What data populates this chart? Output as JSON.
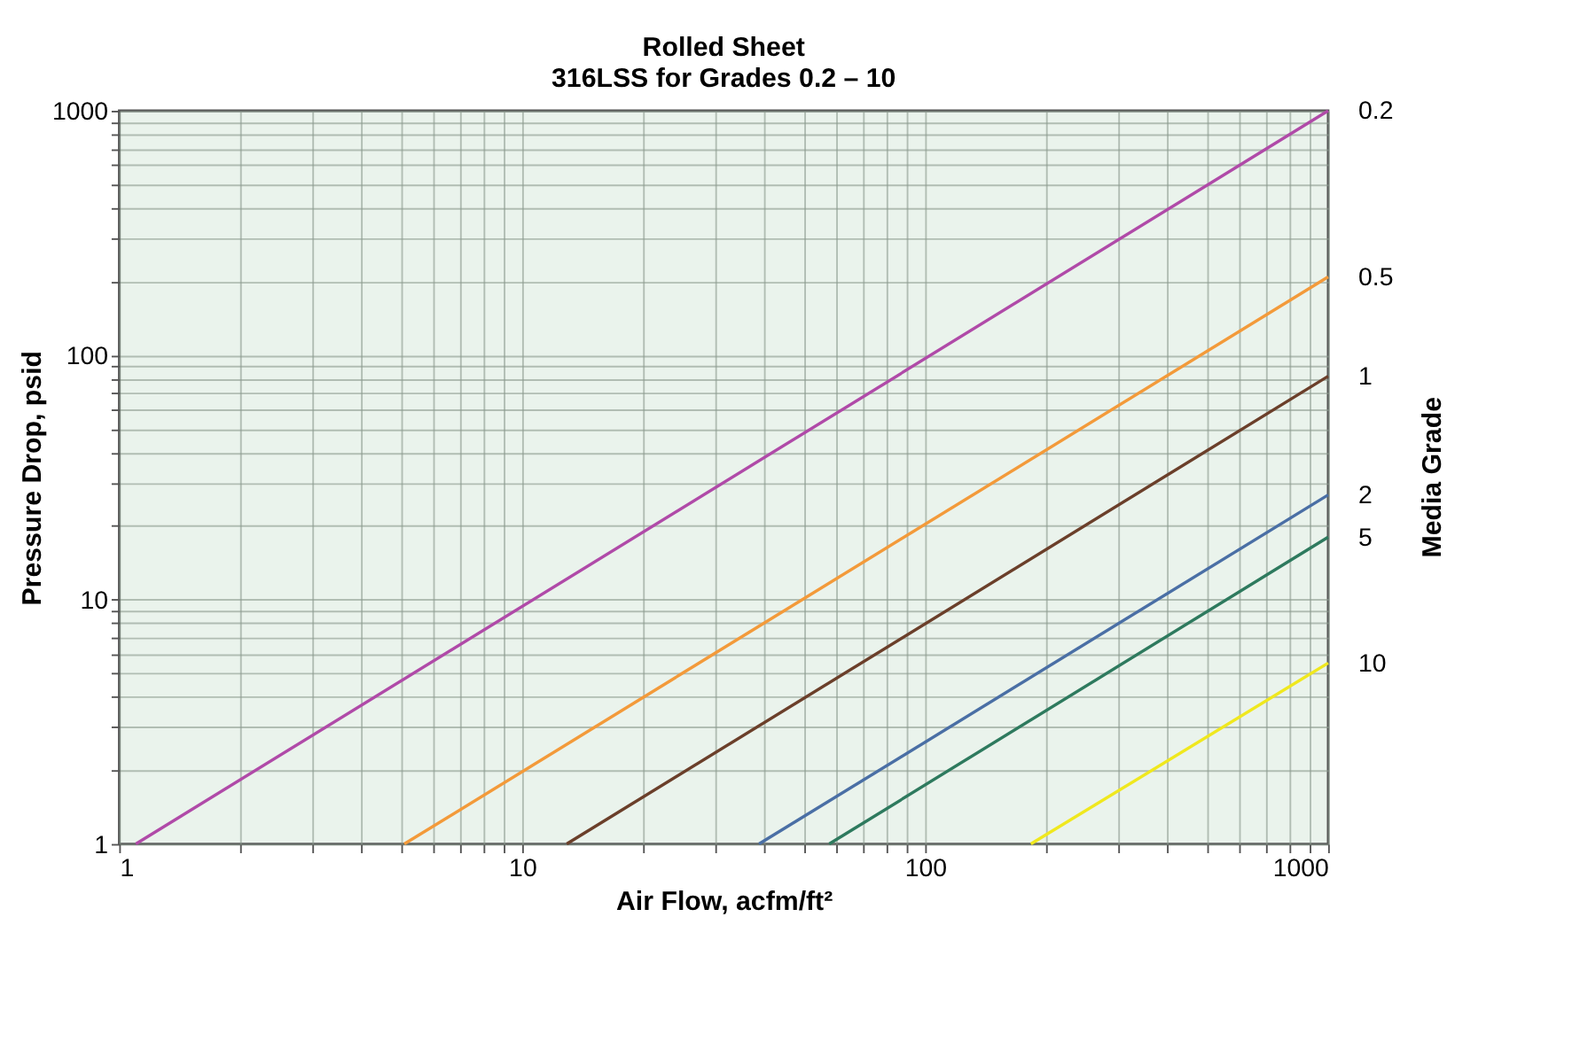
{
  "chart_data": {
    "type": "line",
    "title": "Rolled Sheet",
    "subtitle": "316LSS for Grades 0.2 – 10",
    "xlabel": "Air Flow, acfm/ft²",
    "ylabel": "Pressure Drop, psid",
    "y2label": "Media Grade",
    "log": "xy",
    "grid": true,
    "legend": false,
    "marker": "none",
    "line_style": "solid",
    "xlim": [
      1,
      1000
    ],
    "ylim": [
      1,
      1000
    ],
    "xticks": [
      1,
      {
        "value": 2,
        "label": null
      },
      {
        "value": 3,
        "label": null
      },
      {
        "value": 4,
        "label": null
      },
      {
        "value": 5,
        "label": null
      },
      {
        "value": 6,
        "label": null
      },
      {
        "value": 7,
        "label": null
      },
      {
        "value": 8,
        "label": null
      },
      {
        "value": 9,
        "label": null
      },
      10,
      {
        "value": 20,
        "label": null
      },
      {
        "value": 30,
        "label": null
      },
      {
        "value": 40,
        "label": null
      },
      {
        "value": 50,
        "label": null
      },
      {
        "value": 60,
        "label": null
      },
      {
        "value": 70,
        "label": null
      },
      {
        "value": 80,
        "label": null
      },
      {
        "value": 90,
        "label": null
      },
      100,
      {
        "value": 200,
        "label": null
      },
      {
        "value": 300,
        "label": null
      },
      {
        "value": 400,
        "label": null
      },
      {
        "value": 500,
        "label": null
      },
      {
        "value": 600,
        "label": null
      },
      {
        "value": 700,
        "label": null
      },
      {
        "value": 800,
        "label": null
      },
      {
        "value": 900,
        "label": null
      },
      1000
    ],
    "yticks": [
      1,
      {
        "value": 2,
        "label": null
      },
      {
        "value": 3,
        "label": null
      },
      {
        "value": 4,
        "label": null
      },
      {
        "value": 5,
        "label": null
      },
      {
        "value": 6,
        "label": null
      },
      {
        "value": 7,
        "label": null
      },
      {
        "value": 8,
        "label": null
      },
      {
        "value": 9,
        "label": null
      },
      10,
      {
        "value": 20,
        "label": null
      },
      {
        "value": 30,
        "label": null
      },
      {
        "value": 40,
        "label": null
      },
      {
        "value": 50,
        "label": null
      },
      {
        "value": 60,
        "label": null
      },
      {
        "value": 70,
        "label": null
      },
      {
        "value": 80,
        "label": null
      },
      {
        "value": 90,
        "label": null
      },
      100,
      {
        "value": 200,
        "label": null
      },
      {
        "value": 300,
        "label": null
      },
      {
        "value": 400,
        "label": null
      },
      {
        "value": 500,
        "label": null
      },
      {
        "value": 600,
        "label": null
      },
      {
        "value": 700,
        "label": null
      },
      {
        "value": 800,
        "label": null
      },
      {
        "value": 900,
        "label": null
      },
      1000
    ],
    "series": [
      {
        "name": "0.2",
        "color": "#b04aa8",
        "x": [
          1.1,
          1000
        ],
        "values": [
          1,
          1000
        ]
      },
      {
        "name": "0.5",
        "color": "#f39a3a",
        "x": [
          5.1,
          1000
        ],
        "values": [
          1,
          209
        ]
      },
      {
        "name": "1",
        "color": "#6b3f2a",
        "x": [
          12.9,
          1000
        ],
        "values": [
          1,
          82
        ]
      },
      {
        "name": "2",
        "color": "#4a6fa5",
        "x": [
          38.7,
          1000
        ],
        "values": [
          1,
          26.8
        ]
      },
      {
        "name": "5",
        "color": "#2e7a5e",
        "x": [
          57.8,
          1000
        ],
        "values": [
          1,
          18
        ]
      },
      {
        "name": "10",
        "color": "#f0e81e",
        "x": [
          183,
          1000
        ],
        "values": [
          1,
          5.5
        ]
      }
    ]
  }
}
